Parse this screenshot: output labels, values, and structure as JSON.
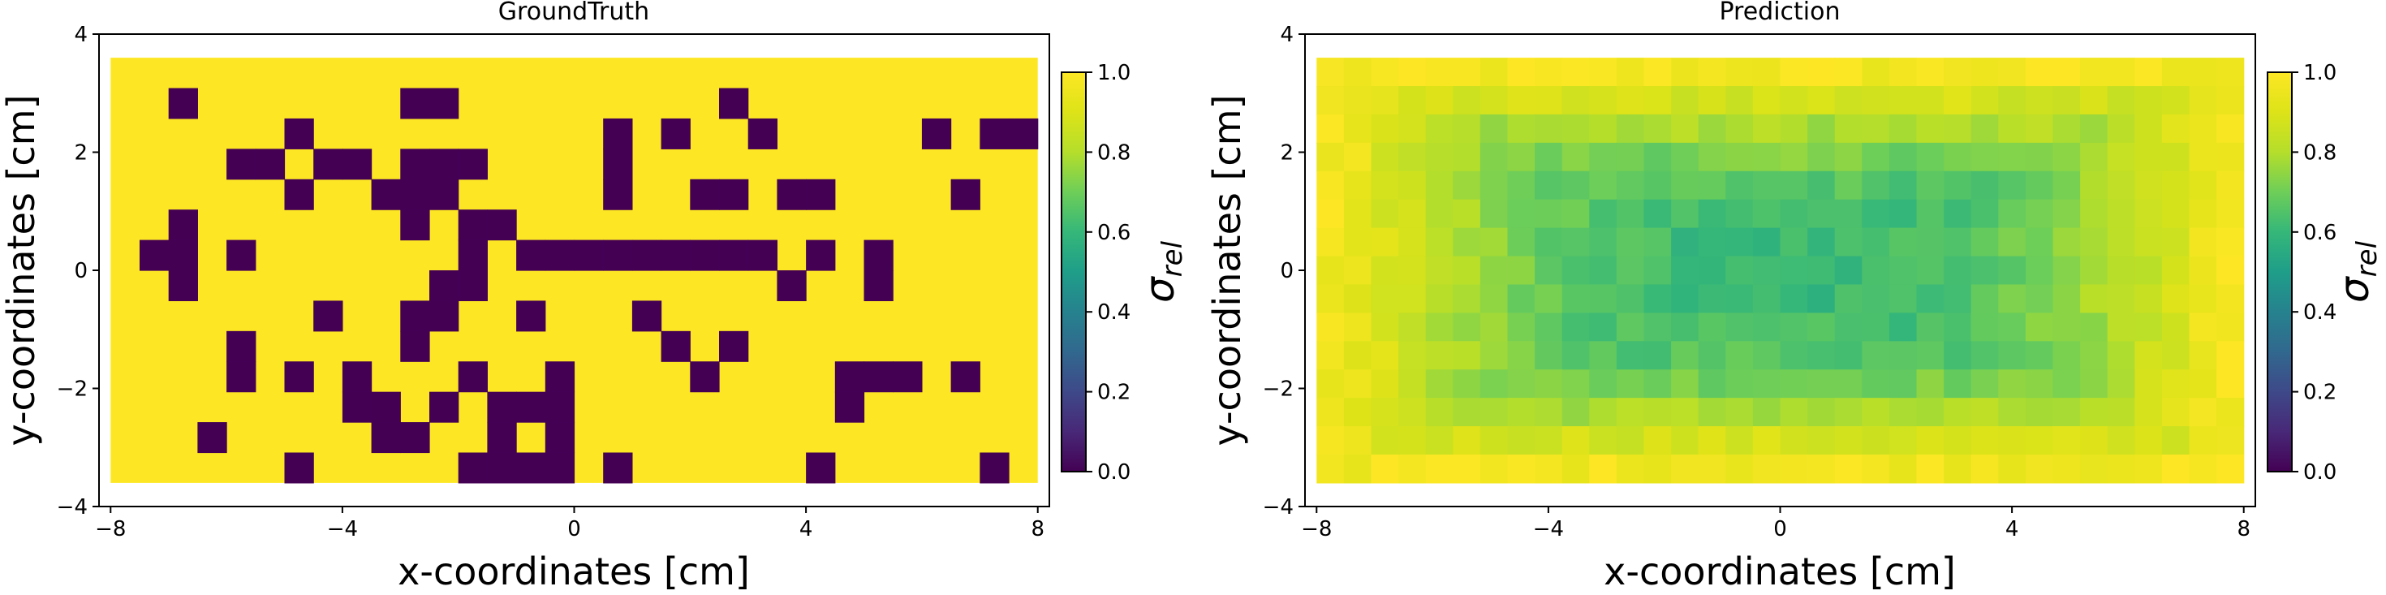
{
  "chart_data": [
    {
      "type": "heatmap",
      "title": "GroundTruth",
      "xlabel": "x-coordinates [cm]",
      "ylabel": "y-coordinates [cm]",
      "xlim": [
        -8.2,
        8.2
      ],
      "ylim": [
        -4,
        4
      ],
      "xticks": [
        -8,
        -4,
        0,
        4,
        8
      ],
      "yticks": [
        -4,
        -2,
        0,
        2,
        4
      ],
      "grid_extent": {
        "x": [
          -8,
          8
        ],
        "y": [
          -3.6,
          3.6
        ]
      },
      "grid_size": {
        "cols": 32,
        "rows": 14
      },
      "colorbar": {
        "label": "σ_rel",
        "min": 0.0,
        "max": 1.0,
        "ticks": [
          0.0,
          0.2,
          0.4,
          0.6,
          0.8,
          1.0
        ]
      },
      "colormap": "viridis",
      "background_value": 1.0,
      "cell_value": 0.0,
      "cells": [
        [
          2,
          1
        ],
        [
          10,
          1
        ],
        [
          11,
          1
        ],
        [
          21,
          1
        ],
        [
          6,
          2
        ],
        [
          17,
          2
        ],
        [
          19,
          2
        ],
        [
          22,
          2
        ],
        [
          28,
          2
        ],
        [
          30,
          2
        ],
        [
          31,
          2
        ],
        [
          4,
          3
        ],
        [
          5,
          3
        ],
        [
          7,
          3
        ],
        [
          8,
          3
        ],
        [
          10,
          3
        ],
        [
          11,
          3
        ],
        [
          12,
          3
        ],
        [
          17,
          3
        ],
        [
          6,
          4
        ],
        [
          9,
          4
        ],
        [
          10,
          4
        ],
        [
          11,
          4
        ],
        [
          17,
          4
        ],
        [
          20,
          4
        ],
        [
          21,
          4
        ],
        [
          23,
          4
        ],
        [
          24,
          4
        ],
        [
          29,
          4
        ],
        [
          2,
          5
        ],
        [
          10,
          5
        ],
        [
          12,
          5
        ],
        [
          13,
          5
        ],
        [
          1,
          6
        ],
        [
          2,
          6
        ],
        [
          4,
          6
        ],
        [
          12,
          6
        ],
        [
          14,
          6
        ],
        [
          15,
          6
        ],
        [
          16,
          6
        ],
        [
          17,
          6
        ],
        [
          18,
          6
        ],
        [
          19,
          6
        ],
        [
          20,
          6
        ],
        [
          21,
          6
        ],
        [
          22,
          6
        ],
        [
          24,
          6
        ],
        [
          26,
          6
        ],
        [
          2,
          7
        ],
        [
          11,
          7
        ],
        [
          12,
          7
        ],
        [
          23,
          7
        ],
        [
          26,
          7
        ],
        [
          7,
          8
        ],
        [
          10,
          8
        ],
        [
          11,
          8
        ],
        [
          14,
          8
        ],
        [
          18,
          8
        ],
        [
          4,
          9
        ],
        [
          10,
          9
        ],
        [
          19,
          9
        ],
        [
          21,
          9
        ],
        [
          4,
          10
        ],
        [
          6,
          10
        ],
        [
          8,
          10
        ],
        [
          12,
          10
        ],
        [
          15,
          10
        ],
        [
          20,
          10
        ],
        [
          25,
          10
        ],
        [
          26,
          10
        ],
        [
          27,
          10
        ],
        [
          29,
          10
        ],
        [
          8,
          11
        ],
        [
          9,
          11
        ],
        [
          11,
          11
        ],
        [
          13,
          11
        ],
        [
          14,
          11
        ],
        [
          15,
          11
        ],
        [
          25,
          11
        ],
        [
          3,
          12
        ],
        [
          9,
          12
        ],
        [
          10,
          12
        ],
        [
          13,
          12
        ],
        [
          15,
          12
        ],
        [
          6,
          13
        ],
        [
          12,
          13
        ],
        [
          13,
          13
        ],
        [
          14,
          13
        ],
        [
          15,
          13
        ],
        [
          17,
          13
        ],
        [
          24,
          13
        ],
        [
          30,
          13
        ]
      ]
    },
    {
      "type": "heatmap",
      "title": "Prediction",
      "xlabel": "x-coordinates [cm]",
      "ylabel": "y-coordinates [cm]",
      "xlim": [
        -8.2,
        8.2
      ],
      "ylim": [
        -4,
        4
      ],
      "xticks": [
        -8,
        -4,
        0,
        4,
        8
      ],
      "yticks": [
        -4,
        -2,
        0,
        2,
        4
      ],
      "grid_extent": {
        "x": [
          -8,
          8
        ],
        "y": [
          -3.6,
          3.6
        ]
      },
      "grid_size": {
        "cols": 34,
        "rows": 15
      },
      "colorbar": {
        "label": "σ_rel",
        "min": 0.0,
        "max": 1.0,
        "ticks": [
          0.0,
          0.2,
          0.4,
          0.6,
          0.8,
          1.0
        ]
      },
      "colormap": "viridis",
      "value_range": [
        0.55,
        1.0
      ],
      "center_value": 0.6,
      "edge_value": 0.97
    }
  ]
}
